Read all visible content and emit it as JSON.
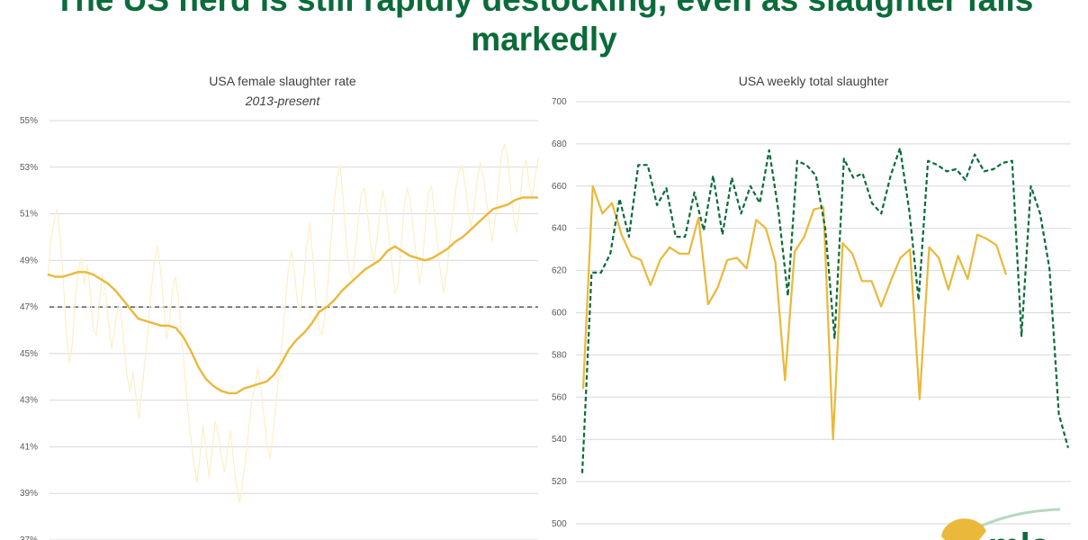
{
  "headline": "The US herd is still rapidly destocking, even as slaughter falls markedly",
  "colors": {
    "headline": "#0b6b3a",
    "rate_raw": "#fcefc8",
    "rate_avg": "#eab83a",
    "reference": "#595959",
    "slaughter_a": "#eab83a",
    "slaughter_b": "#0b6b3a",
    "grid": "#d9d9d9"
  },
  "chart_data": [
    {
      "type": "line",
      "title": "USA female slaughter rate",
      "subtitle": "2013-present",
      "ylim": [
        37,
        55
      ],
      "yticks": [
        "55%",
        "53%",
        "51%",
        "49%",
        "47%",
        "45%",
        "43%",
        "41%",
        "39%",
        "37%"
      ],
      "y_unit": "%",
      "grid": true,
      "reference_line": {
        "value": 47,
        "style": "dashed"
      },
      "series": [
        {
          "style": "raw weekly",
          "values": [
            48.3,
            49.8,
            50.6,
            51.2,
            50.1,
            48.4,
            46.2,
            44.6,
            45.3,
            47.2,
            48.6,
            49.1,
            48.0,
            48.8,
            47.6,
            46.0,
            45.8,
            47.2,
            48.4,
            47.6,
            46.3,
            45.2,
            46.1,
            47.0,
            46.8,
            45.5,
            44.1,
            43.4,
            44.2,
            43.1,
            42.2,
            43.5,
            44.8,
            46.0,
            47.8,
            48.9,
            49.6,
            48.7,
            47.2,
            45.6,
            46.4,
            47.8,
            48.3,
            47.2,
            45.8,
            44.1,
            42.6,
            41.4,
            40.2,
            39.5,
            40.6,
            41.9,
            40.8,
            39.7,
            40.9,
            42.1,
            41.5,
            40.6,
            39.9,
            40.8,
            41.7,
            40.4,
            39.3,
            38.6,
            39.5,
            40.4,
            41.8,
            42.9,
            43.6,
            44.4,
            43.5,
            42.3,
            41.1,
            40.5,
            41.6,
            42.9,
            44.3,
            45.6,
            47.1,
            48.6,
            49.4,
            48.5,
            47.2,
            46.8,
            48.1,
            49.6,
            50.6,
            49.2,
            47.4,
            46.1,
            45.8,
            46.6,
            48.0,
            49.9,
            51.4,
            52.6,
            53.1,
            51.6,
            49.8,
            48.6,
            48.2,
            49.4,
            50.8,
            51.9,
            52.1,
            51.0,
            49.7,
            48.9,
            49.8,
            51.1,
            52.0,
            51.2,
            50.1,
            48.8,
            47.6,
            47.9,
            49.6,
            51.3,
            52.1,
            51.6,
            50.3,
            49.2,
            48.0,
            48.8,
            50.6,
            51.9,
            52.2,
            51.0,
            49.6,
            48.4,
            47.6,
            48.5,
            49.8,
            51.0,
            52.1,
            52.8,
            53.1,
            52.3,
            51.2,
            50.4,
            51.3,
            52.4,
            53.2,
            52.6,
            51.6,
            50.6,
            49.8,
            50.9,
            52.3,
            53.6,
            54.0,
            53.4,
            52.1,
            50.8,
            50.2,
            51.5,
            52.9,
            53.3,
            52.4,
            51.6,
            52.6,
            53.4
          ]
        },
        {
          "style": "rolling average",
          "values": [
            48.4,
            48.3,
            48.3,
            48.4,
            48.5,
            48.5,
            48.4,
            48.2,
            48.0,
            47.7,
            47.3,
            46.9,
            46.5,
            46.4,
            46.3,
            46.2,
            46.2,
            46.1,
            45.7,
            45.1,
            44.4,
            43.9,
            43.6,
            43.4,
            43.3,
            43.3,
            43.5,
            43.6,
            43.7,
            43.8,
            44.1,
            44.6,
            45.2,
            45.6,
            45.9,
            46.3,
            46.8,
            47.0,
            47.3,
            47.7,
            48.0,
            48.3,
            48.6,
            48.8,
            49.0,
            49.4,
            49.6,
            49.4,
            49.2,
            49.1,
            49.0,
            49.1,
            49.3,
            49.5,
            49.8,
            50.0,
            50.3,
            50.6,
            50.9,
            51.2,
            51.3,
            51.4,
            51.6,
            51.7,
            51.7,
            51.7
          ]
        }
      ]
    },
    {
      "type": "line",
      "title": "USA weekly total slaughter",
      "ylim": [
        500,
        700
      ],
      "yticks": [
        "700",
        "680",
        "660",
        "640",
        "620",
        "600",
        "580",
        "560",
        "540",
        "520",
        "500"
      ],
      "grid": true,
      "series": [
        {
          "style": "solid",
          "values": [
            564,
            660,
            647,
            652,
            637,
            627,
            625,
            613,
            625,
            631,
            628,
            628,
            645,
            604,
            612,
            625,
            626,
            621,
            644,
            640,
            624,
            568,
            629,
            636,
            649,
            650,
            540,
            633,
            628,
            615,
            615,
            603,
            615,
            626,
            630,
            559,
            631,
            626,
            611,
            627,
            616,
            637,
            635,
            632,
            618
          ]
        },
        {
          "style": "dashed",
          "values": [
            524,
            619,
            619,
            628,
            654,
            636,
            670,
            670,
            651,
            659,
            636,
            636,
            657,
            639,
            665,
            637,
            664,
            647,
            660,
            652,
            677,
            648,
            608,
            672,
            670,
            665,
            640,
            588,
            673,
            664,
            666,
            652,
            647,
            665,
            678,
            648,
            606,
            672,
            670,
            667,
            668,
            663,
            675,
            667,
            668,
            671,
            672,
            589,
            660,
            647,
            621,
            552,
            536
          ]
        }
      ],
      "legend_placement": "bottom"
    }
  ]
}
